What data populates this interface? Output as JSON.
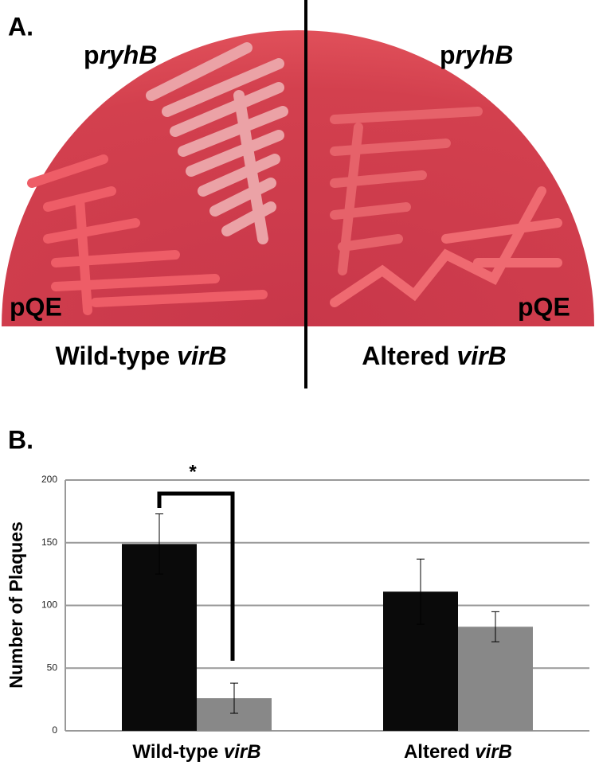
{
  "panel_a": {
    "label": "A.",
    "top_left": "pryhB",
    "top_right": "pryhB",
    "bottom_left": "pQE",
    "bottom_right": "pQE",
    "left_caption": "Wild-type virB",
    "right_caption": "Altered virB"
  },
  "chart_data": {
    "type": "bar",
    "panel_label": "B.",
    "annotation": "*",
    "y_label": "Number of Plaques",
    "categories": [
      "Wild-type virB",
      "Altered virB"
    ],
    "series": [
      {
        "color": "#0a0a0a",
        "values": [
          149,
          111
        ],
        "errors": [
          24,
          26
        ]
      },
      {
        "color": "#888888",
        "values": [
          26,
          83
        ],
        "errors": [
          12,
          12
        ]
      }
    ],
    "ylim": [
      0,
      200
    ],
    "yticks": [
      0,
      50,
      100,
      150,
      200
    ],
    "grid": true
  }
}
